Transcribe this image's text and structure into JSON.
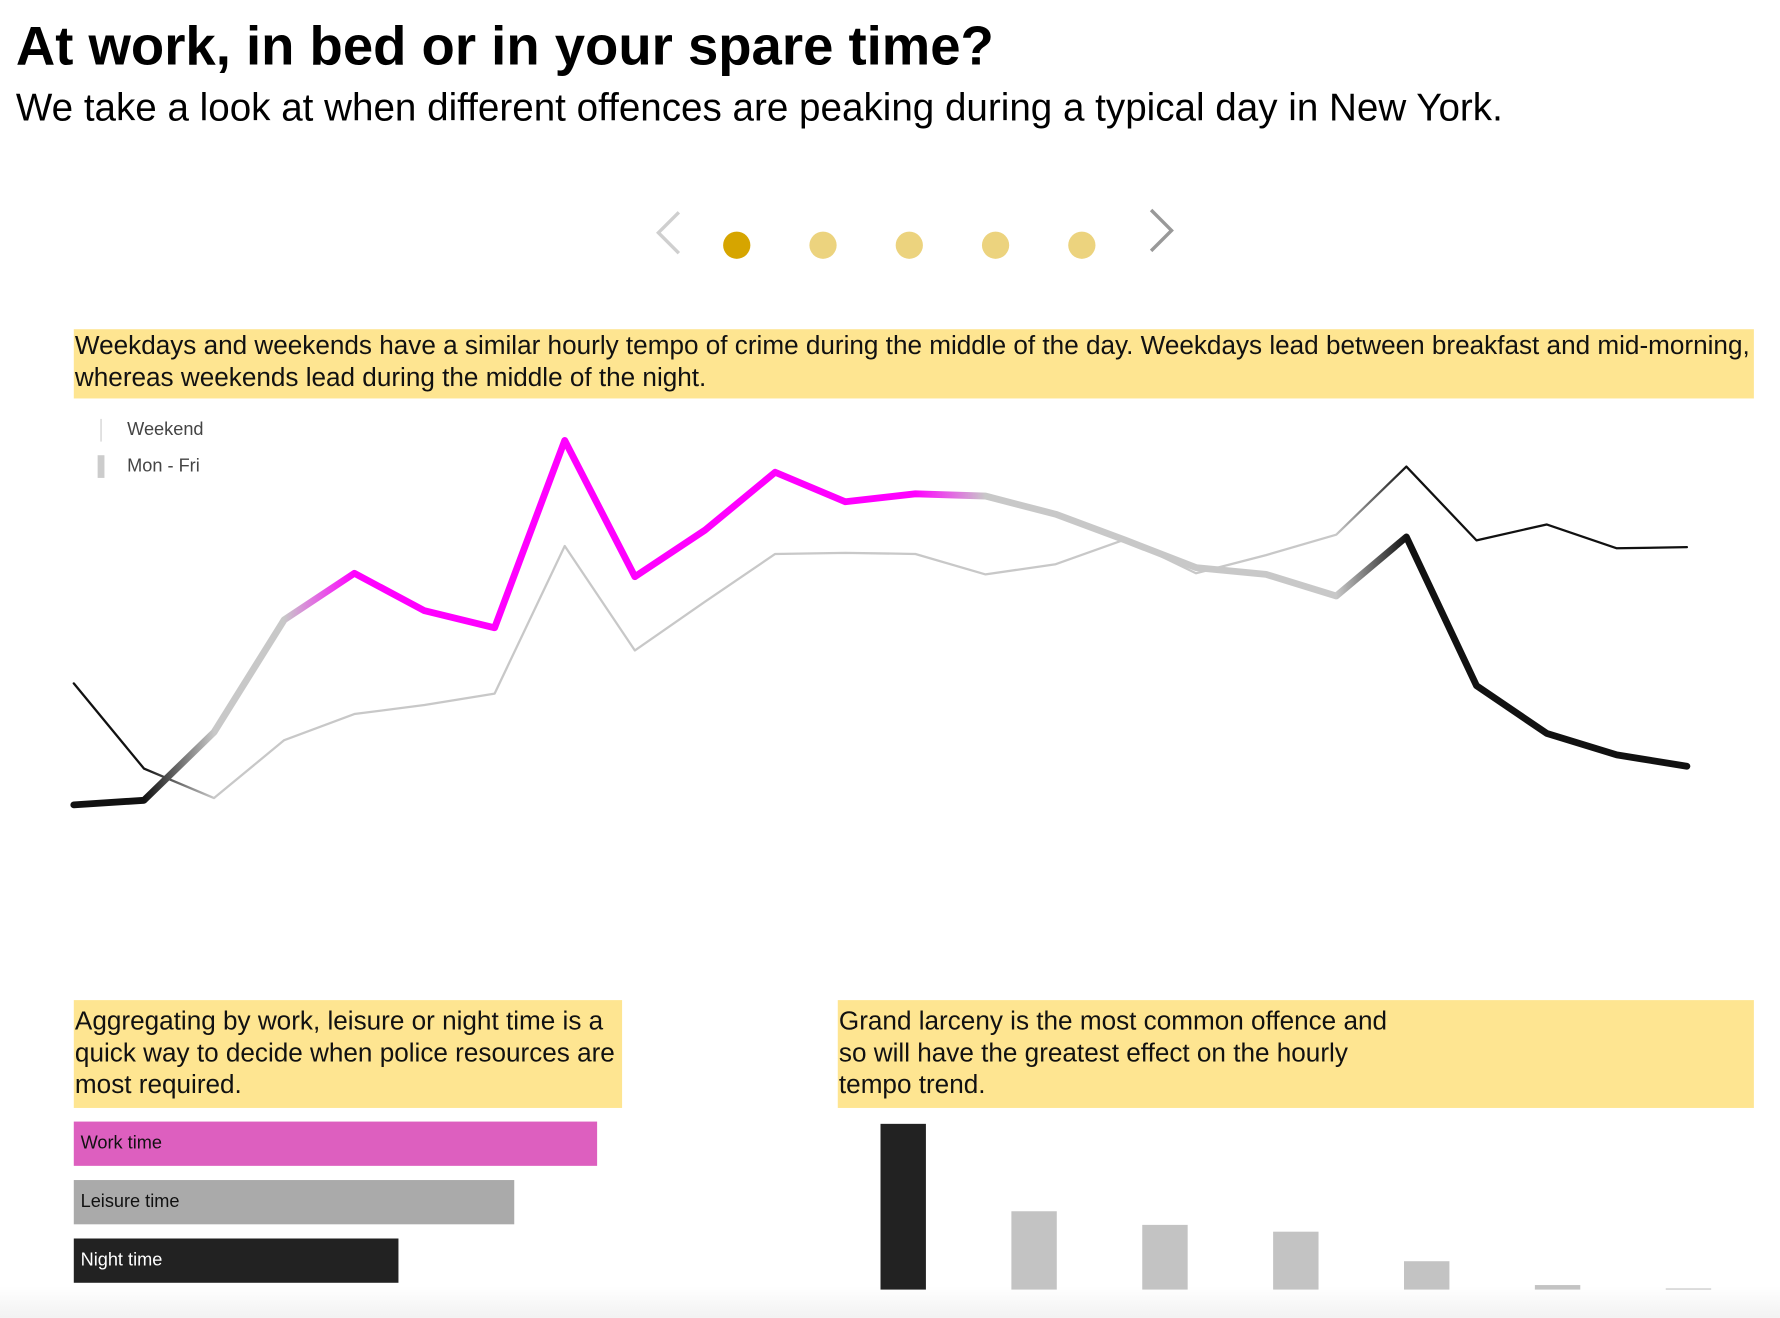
{
  "header": {
    "title": "At work, in bed or in your spare time?",
    "subtitle": "We take a look at when different offences are peaking during a typical day in New York."
  },
  "chart_data": [
    {
      "type": "line",
      "note": "Weekdays and weekends have a similar hourly tempo of crime during the middle of the day.  Weekdays lead between breakfast and mid-morning, whereas weekends lead during the middle of the night.",
      "categories": [
        null,
        null,
        null,
        null,
        null,
        null,
        null,
        null,
        null,
        null,
        null,
        null,
        null,
        null,
        null,
        null,
        null,
        null,
        null,
        null,
        null,
        null,
        null,
        null
      ],
      "ylim": [
        0,
        400
      ],
      "series": [
        {
          "name": "Weekend",
          "color": "#111111",
          "values": [
            158,
            83,
            57,
            108,
            131,
            139,
            149,
            279,
            187,
            230,
            272,
            273,
            272,
            254,
            263,
            285,
            255,
            271,
            289,
            349,
            284,
            298,
            277,
            278
          ],
          "point_colors": [
            "#111111",
            "#111111",
            "#c8c8c8",
            "#c8c8c8",
            "#c8c8c8",
            "#c8c8c8",
            "#c8c8c8",
            "#c8c8c8",
            "#c8c8c8",
            "#c8c8c8",
            "#c8c8c8",
            "#c8c8c8",
            "#c8c8c8",
            "#c8c8c8",
            "#c8c8c8",
            "#c8c8c8",
            "#c8c8c8",
            "#c8c8c8",
            "#c8c8c8",
            "#111111",
            "#111111",
            "#111111",
            "#111111",
            "#111111"
          ]
        },
        {
          "name": "Mon - Fri",
          "color": "#111111",
          "values": [
            51,
            55,
            115,
            214,
            255,
            222,
            207,
            372,
            252,
            293,
            344,
            318,
            325,
            323,
            307,
            284,
            260,
            254,
            235,
            287,
            156,
            114,
            95,
            85
          ],
          "point_colors": [
            "#111111",
            "#111111",
            "#c8c8c8",
            "#c8c8c8",
            "#ff00ff",
            "#ff00ff",
            "#ff00ff",
            "#ff00ff",
            "#ff00ff",
            "#ff00ff",
            "#ff00ff",
            "#ff00ff",
            "#ff00ff",
            "#c8c8c8",
            "#c8c8c8",
            "#c8c8c8",
            "#c8c8c8",
            "#c8c8c8",
            "#c8c8c8",
            "#111111",
            "#111111",
            "#111111",
            "#111111",
            "#111111"
          ]
        }
      ]
    },
    {
      "type": "bar",
      "orientation": "horizontal",
      "note": "Aggregating by work, leisure or night time is a quick way to decide when police resources are most required.",
      "categories": [
        "Work time",
        "Leisure time",
        "Night time"
      ],
      "values": [
        461,
        388,
        286
      ],
      "colors": [
        "#dd5fbf",
        "#aaaaaa",
        "#222222"
      ],
      "xlim": [
        0,
        483
      ]
    },
    {
      "type": "bar",
      "orientation": "vertical",
      "note": "Grand larceny is the most common offence and so will have the greatest effect on the hourly tempo trend.",
      "categories": [
        null,
        null,
        null,
        null,
        null,
        null,
        null
      ],
      "values": [
        146,
        69,
        57,
        51,
        25,
        4,
        1
      ],
      "colors": [
        "#222222",
        "#c3c3c3",
        "#c3c3c3",
        "#c3c3c3",
        "#c3c3c3",
        "#c3c3c3",
        "#c3c3c3"
      ],
      "ylim": [
        0,
        150
      ]
    }
  ]
}
